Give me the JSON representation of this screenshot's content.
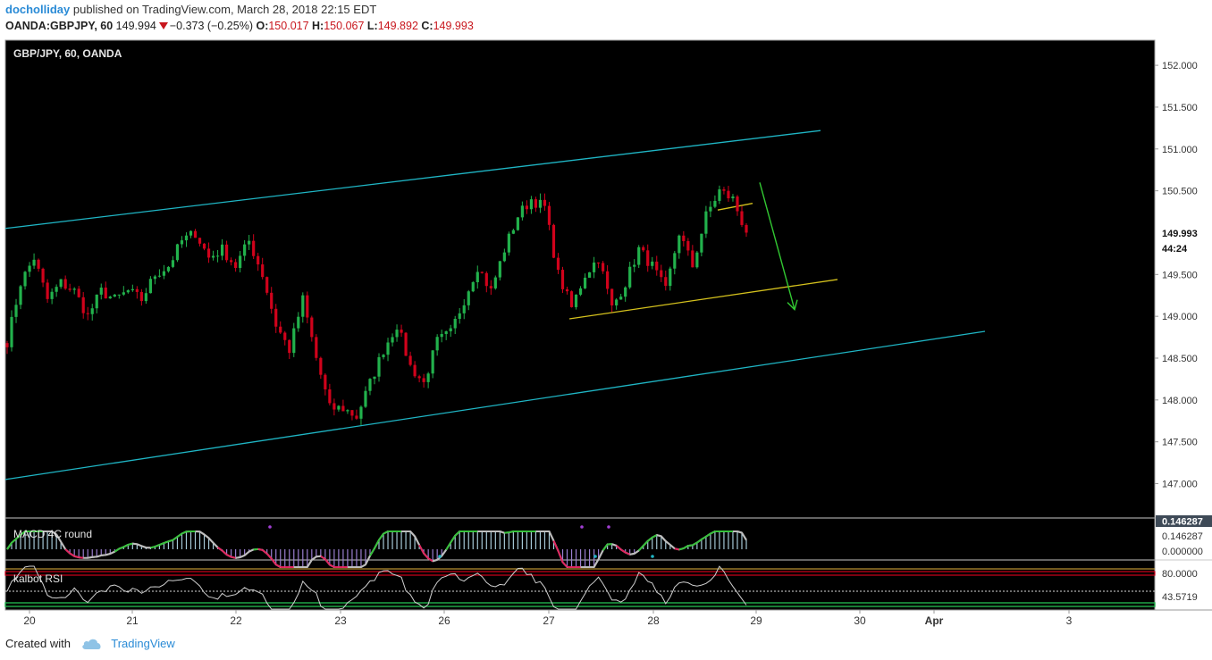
{
  "header": {
    "author": "docholliday",
    "published_text": "published on TradingView.com, March 28, 2018 22:15 EDT",
    "symbol": "OANDA:GBPJPY, 60",
    "last": "149.994",
    "change": "−0.373 (−0.25%)",
    "o_label": "O:",
    "o_value": "150.017",
    "h_label": "H:",
    "h_value": "150.067",
    "l_label": "L:",
    "l_value": "149.892",
    "c_label": "C:",
    "c_value": "149.993"
  },
  "footer": {
    "created_with": "Created with",
    "brand": "TradingView"
  },
  "colors": {
    "background": "#000000",
    "up_candle": "#22b14c",
    "down_candle": "#d0021b",
    "channel": "#1fb5c4",
    "support": "#d4c11d",
    "arrow": "#32c832",
    "macd_histogram": "#a5c8d6",
    "rsi_line": "#cfcfcf"
  },
  "chart_data": {
    "type": "candlestick",
    "title": "GBP/JPY, 60, OANDA",
    "price_ticks": [
      "152.000",
      "151.500",
      "151.000",
      "150.500",
      "149.500",
      "149.000",
      "148.500",
      "148.000",
      "147.500",
      "147.000"
    ],
    "ylim": [
      146.6,
      152.3
    ],
    "last_price_label": "149.993",
    "countdown_label": "44:24",
    "x_ticks": [
      "20",
      "21",
      "22",
      "23",
      "26",
      "27",
      "28",
      "29",
      "30",
      "Apr",
      "3"
    ],
    "close_path": [
      [
        "20",
        148.7
      ],
      [
        "20",
        149.4
      ],
      [
        "20",
        149.7
      ],
      [
        "20",
        149.2
      ],
      [
        "20",
        149.4
      ],
      [
        "20",
        149.3
      ],
      [
        "20",
        149.0
      ],
      [
        "20",
        149.3
      ],
      [
        "21",
        149.2
      ],
      [
        "21",
        149.3
      ],
      [
        "21",
        149.2
      ],
      [
        "21",
        149.5
      ],
      [
        "21",
        149.6
      ],
      [
        "21",
        149.9
      ],
      [
        "21",
        150.0
      ],
      [
        "21",
        149.7
      ],
      [
        "22",
        149.8
      ],
      [
        "22",
        149.6
      ],
      [
        "22",
        149.9
      ],
      [
        "22",
        149.5
      ],
      [
        "22",
        148.9
      ],
      [
        "22",
        148.6
      ],
      [
        "22",
        149.2
      ],
      [
        "22",
        148.5
      ],
      [
        "23",
        147.9
      ],
      [
        "23",
        147.9
      ],
      [
        "23",
        147.8
      ],
      [
        "23",
        148.2
      ],
      [
        "23",
        148.6
      ],
      [
        "23",
        148.9
      ],
      [
        "23",
        148.4
      ],
      [
        "26",
        148.2
      ],
      [
        "26",
        148.7
      ],
      [
        "26",
        148.8
      ],
      [
        "26",
        149.2
      ],
      [
        "26",
        149.6
      ],
      [
        "26",
        149.3
      ],
      [
        "26",
        149.8
      ],
      [
        "26",
        150.2
      ],
      [
        "26",
        150.4
      ],
      [
        "27",
        150.3
      ],
      [
        "27",
        149.5
      ],
      [
        "27",
        149.1
      ],
      [
        "27",
        149.5
      ],
      [
        "27",
        149.7
      ],
      [
        "27",
        149.1
      ],
      [
        "27",
        149.4
      ],
      [
        "28",
        149.8
      ],
      [
        "28",
        149.6
      ],
      [
        "28",
        149.3
      ],
      [
        "28",
        150.0
      ],
      [
        "28",
        149.6
      ],
      [
        "28",
        150.2
      ],
      [
        "28",
        150.5
      ],
      [
        "28",
        150.4
      ],
      [
        "28",
        150.0
      ]
    ],
    "channel_upper": {
      "from": [
        "20",
        150.05
      ],
      "to": [
        "30",
        151.22
      ]
    },
    "channel_lower": {
      "from": [
        "20",
        147.05
      ],
      "to": [
        "Apr",
        148.82
      ]
    },
    "support_line": {
      "from": [
        "27",
        148.97
      ],
      "to": [
        "30",
        149.44
      ]
    },
    "resistance_segment": {
      "from": [
        "28",
        150.27
      ],
      "to": [
        "28",
        150.35
      ]
    },
    "indicators": [
      {
        "name": "MACD 4C round",
        "ticks": [
          "0.146287",
          "0.000000"
        ],
        "value_label": "0.146287",
        "top_label": "0.146287"
      },
      {
        "name": "kalbot RSI",
        "ticks": [
          "80.0000"
        ],
        "value_label": "43.5719",
        "levels": [
          80,
          50,
          20
        ]
      }
    ]
  }
}
